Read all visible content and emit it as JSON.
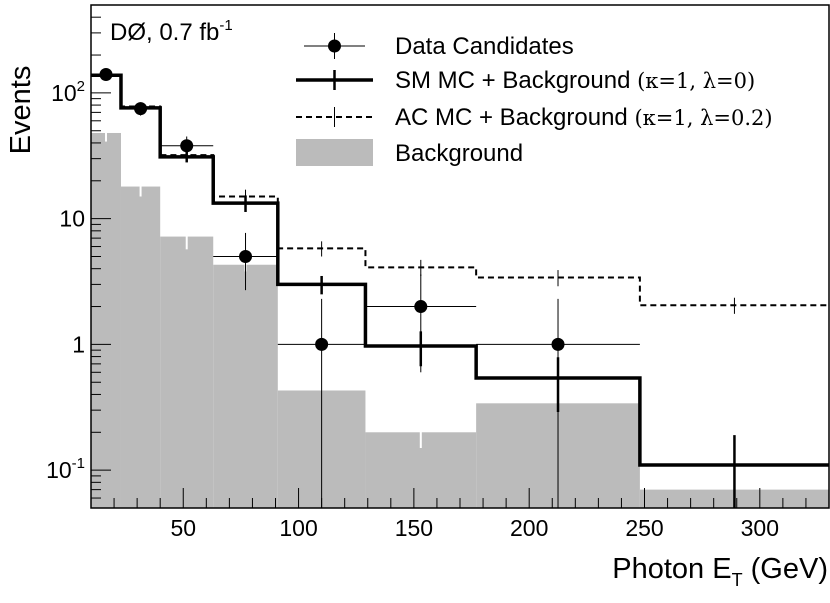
{
  "chart_data": {
    "type": "histogram",
    "annotation": {
      "experiment": "DØ",
      "lumi_text": ", 0.7 fb",
      "lumi_sup": "-1"
    },
    "xlabel": {
      "main": "Photon E",
      "sub": "T",
      "unit": " (GeV)"
    },
    "ylabel": "Events",
    "xlim": [
      10,
      330
    ],
    "ylim": [
      0.05,
      500
    ],
    "yscale": "log",
    "x_ticks": [
      {
        "value": 50,
        "label": "50"
      },
      {
        "value": 100,
        "label": "100"
      },
      {
        "value": 150,
        "label": "150"
      },
      {
        "value": 200,
        "label": "200"
      },
      {
        "value": 250,
        "label": "250"
      },
      {
        "value": 300,
        "label": "300"
      }
    ],
    "y_ticks": [
      {
        "value": 0.1,
        "base": "10",
        "exp": "-1"
      },
      {
        "value": 1,
        "base": "1",
        "exp": ""
      },
      {
        "value": 10,
        "base": "10",
        "exp": ""
      },
      {
        "value": 100,
        "base": "10",
        "exp": "2"
      }
    ],
    "bin_edges": [
      10,
      23,
      40,
      63,
      91,
      129,
      177,
      248,
      330
    ],
    "series": [
      {
        "name": "Background",
        "style": "filled",
        "color": "#bbbbbb",
        "values": [
          48,
          18,
          7.2,
          4.3,
          0.43,
          0.2,
          0.34,
          0.07
        ],
        "errors": [
          7,
          3,
          1.5,
          0.5,
          0,
          0.05,
          0,
          0
        ]
      },
      {
        "name": "AC MC + Background",
        "params": "(κ=1, λ=0.2)",
        "style": "dashed",
        "color": "#000000",
        "values": [
          140,
          78,
          32,
          15,
          5.8,
          4.1,
          3.4,
          2.05
        ],
        "errors": [
          10,
          6,
          3,
          2,
          0.8,
          0.6,
          0.5,
          0.3
        ]
      },
      {
        "name": "SM MC + Background",
        "params": "(κ=1, λ=0)",
        "style": "solid",
        "color": "#000000",
        "values": [
          138,
          76,
          31,
          13.3,
          3.0,
          0.97,
          0.54,
          0.11
        ],
        "errors": [
          10,
          6,
          3,
          2,
          0.5,
          0.3,
          0.25,
          0.08
        ]
      }
    ],
    "data_points": {
      "name": "Data Candidates",
      "x": [
        16.5,
        31.5,
        51.5,
        77,
        110,
        153,
        212.5,
        289
      ],
      "y": [
        140,
        75,
        38,
        5,
        1,
        2,
        1,
        0
      ],
      "xerr": [
        6.5,
        8.5,
        11.5,
        14,
        19,
        24,
        35.5,
        41
      ],
      "yerr_up": [
        12,
        9,
        7,
        2.7,
        1.3,
        1.6,
        1.3,
        0
      ],
      "yerr_down": [
        12,
        9,
        7,
        2.3,
        0.95,
        1.4,
        0.95,
        0
      ]
    }
  }
}
